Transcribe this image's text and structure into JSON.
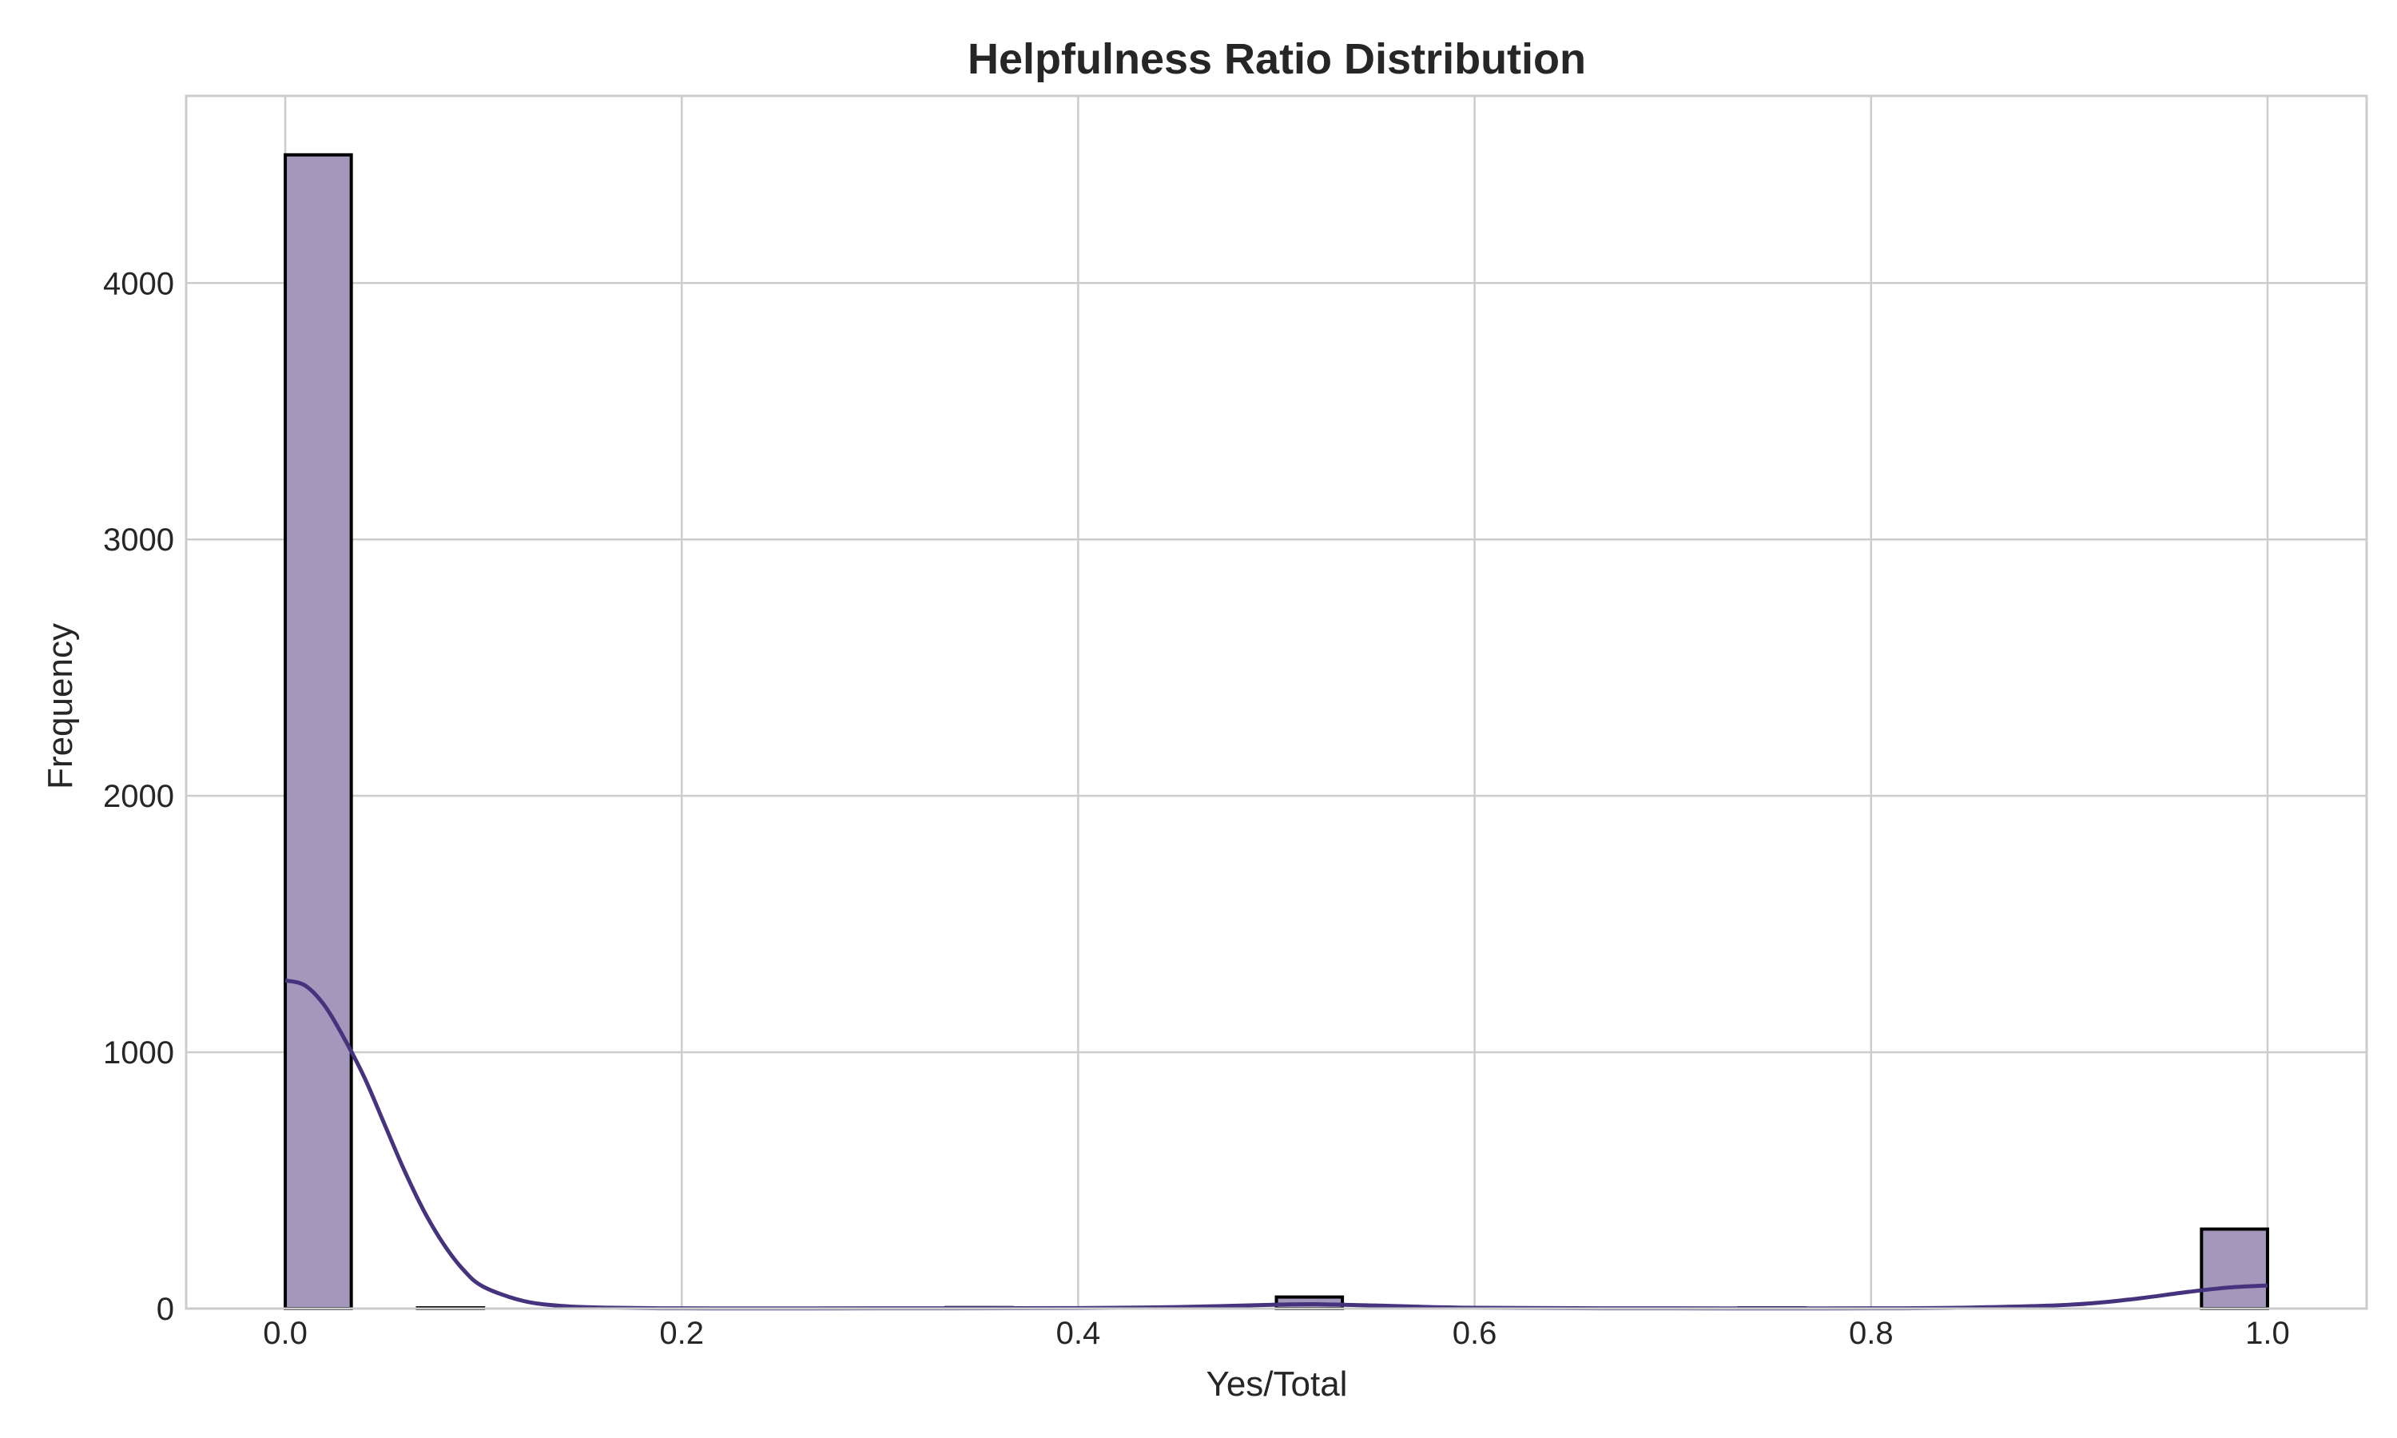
{
  "chart_data": {
    "type": "bar",
    "title": "Helpfulness Ratio Distribution",
    "xlabel": "Yes/Total",
    "ylabel": "Frequency",
    "xlim": [
      -0.05,
      1.05
    ],
    "ylim": [
      0,
      4730
    ],
    "grid": true,
    "xticks": [
      0.0,
      0.2,
      0.4,
      0.6,
      0.8,
      1.0
    ],
    "xtick_labels": [
      "0.0",
      "0.2",
      "0.4",
      "0.6",
      "0.8",
      "1.0"
    ],
    "yticks": [
      0,
      1000,
      2000,
      3000,
      4000
    ],
    "ytick_labels": [
      "0",
      "1000",
      "2000",
      "3000",
      "4000"
    ],
    "bin_width": 0.0333,
    "bins": [
      {
        "x0": 0.0,
        "x1": 0.0333,
        "count": 4500
      },
      {
        "x0": 0.0667,
        "x1": 0.1,
        "count": 3
      },
      {
        "x0": 0.3333,
        "x1": 0.3667,
        "count": 4
      },
      {
        "x0": 0.5,
        "x1": 0.5333,
        "count": 45
      },
      {
        "x0": 0.7333,
        "x1": 0.7667,
        "count": 3
      },
      {
        "x0": 0.9667,
        "x1": 1.0,
        "count": 310
      }
    ],
    "kde": {
      "x": [
        0.0,
        0.01,
        0.02,
        0.03,
        0.04,
        0.05,
        0.06,
        0.07,
        0.08,
        0.09,
        0.1,
        0.12,
        0.14,
        0.16,
        0.2,
        0.3,
        0.4,
        0.45,
        0.5,
        0.52,
        0.55,
        0.6,
        0.7,
        0.8,
        0.85,
        0.9,
        0.93,
        0.96,
        0.98,
        1.0
      ],
      "y": [
        1280,
        1260,
        1180,
        1050,
        900,
        720,
        540,
        380,
        250,
        150,
        85,
        30,
        10,
        4,
        1,
        1,
        2,
        6,
        15,
        17,
        12,
        3,
        1,
        1,
        4,
        15,
        35,
        65,
        82,
        90
      ]
    },
    "colors": {
      "bar_fill": "#a398bc",
      "bar_edge": "#000000",
      "kde_line": "#45337d",
      "grid": "#cccccc"
    }
  }
}
